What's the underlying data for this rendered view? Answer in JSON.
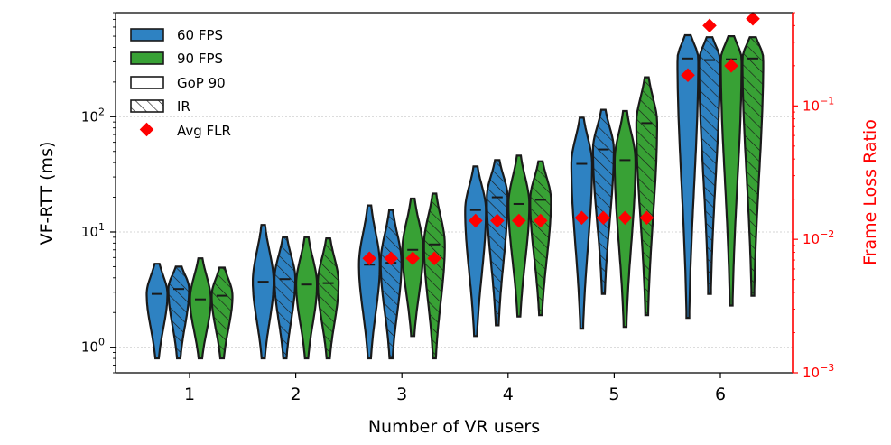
{
  "chart_data": {
    "type": "violin",
    "xlabel": "Number of VR users",
    "ylabel": "VF-RTT (ms)",
    "y2label": "Frame Loss Ratio",
    "yscale": "log",
    "ylim": [
      0.6,
      800
    ],
    "y2lim": [
      0.001,
      0.5
    ],
    "categories": [
      "1",
      "2",
      "3",
      "4",
      "5",
      "6"
    ],
    "ytick_labels": [
      {
        "base": "10",
        "exp": "0",
        "value": 1
      },
      {
        "base": "10",
        "exp": "1",
        "value": 10
      },
      {
        "base": "10",
        "exp": "2",
        "value": 100
      }
    ],
    "y2tick_labels": [
      {
        "base": "10",
        "exp": "−3",
        "value": 0.001
      },
      {
        "base": "10",
        "exp": "−2",
        "value": 0.01
      },
      {
        "base": "10",
        "exp": "−1",
        "value": 0.1
      }
    ],
    "series": [
      {
        "name": "60 FPS, GoP 90",
        "fps": "60",
        "mode": "GoP 90",
        "color": "#2e82c2",
        "median": [
          2.9,
          3.7,
          5.2,
          15.5,
          39,
          320
        ],
        "min": [
          0.8,
          0.8,
          0.8,
          1.25,
          1.45,
          1.8
        ],
        "max": [
          5.3,
          11.5,
          17,
          37,
          98,
          510
        ],
        "flr": [
          null,
          null,
          0.0072,
          0.0138,
          0.0145,
          0.17
        ]
      },
      {
        "name": "60 FPS, IR",
        "fps": "60",
        "mode": "IR",
        "color": "#2e82c2",
        "median": [
          3.2,
          3.9,
          5.4,
          20,
          52,
          310
        ],
        "min": [
          0.8,
          0.8,
          0.8,
          1.55,
          2.9,
          2.9
        ],
        "max": [
          5.0,
          9.0,
          15.5,
          42,
          115,
          490
        ],
        "flr": [
          null,
          null,
          0.0072,
          0.0138,
          0.0145,
          0.4
        ]
      },
      {
        "name": "90 FPS, GoP 90",
        "fps": "90",
        "mode": "GoP 90",
        "color": "#38a135",
        "median": [
          2.6,
          3.5,
          7.0,
          17.5,
          42,
          315
        ],
        "min": [
          0.8,
          0.8,
          1.25,
          1.85,
          1.5,
          2.3
        ],
        "max": [
          5.9,
          9.0,
          19.5,
          46,
          112,
          500
        ],
        "flr": [
          null,
          null,
          0.0072,
          0.0138,
          0.0145,
          0.2
        ]
      },
      {
        "name": "90 FPS, IR",
        "fps": "90",
        "mode": "IR",
        "color": "#38a135",
        "median": [
          2.8,
          3.6,
          7.8,
          19,
          88,
          320
        ],
        "min": [
          0.8,
          0.8,
          0.8,
          1.9,
          1.9,
          2.8
        ],
        "max": [
          4.9,
          8.8,
          21.5,
          41,
          220,
          490
        ],
        "flr": [
          null,
          null,
          0.0072,
          0.0138,
          0.0145,
          0.45
        ]
      }
    ],
    "legend": {
      "placement": "top-left",
      "entries": [
        "60 FPS",
        "90 FPS",
        "GoP 90",
        "IR",
        "Avg FLR"
      ],
      "colors": {
        "fps60": "#2e82c2",
        "fps90": "#38a135",
        "flr": "#ff0000"
      }
    },
    "grid": "y-major"
  }
}
